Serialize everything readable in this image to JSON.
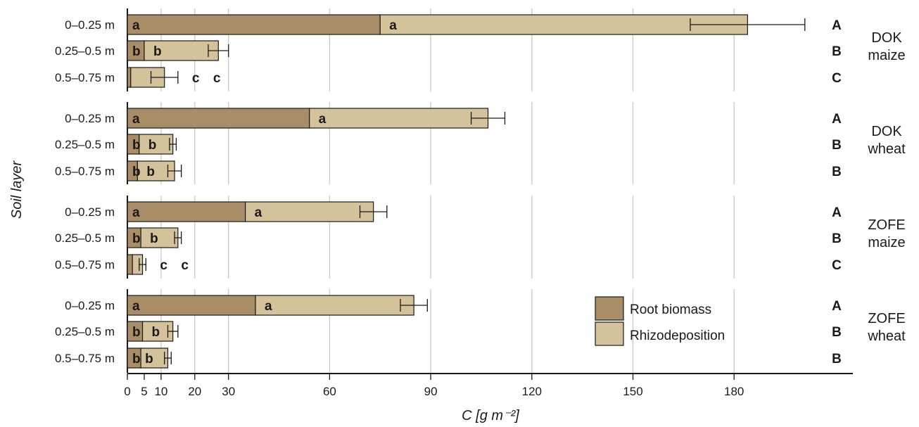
{
  "chart_data": {
    "type": "bar",
    "orientation": "horizontal",
    "stacked": true,
    "xlabel": "C [g m⁻²]",
    "ylabel": "Soil layer",
    "xticks": [
      0,
      5,
      10,
      20,
      30,
      60,
      90,
      120,
      150,
      180
    ],
    "xlim": [
      0,
      210
    ],
    "grid": "vertical",
    "legend_position": "bottom-right",
    "colors": {
      "root": "#a88d66",
      "rhizo": "#d4c39a"
    },
    "series": [
      {
        "name": "Root biomass"
      },
      {
        "name": "Rhizodeposition"
      }
    ],
    "panels": [
      {
        "label_lines": [
          "DOK",
          "maize"
        ],
        "rows": [
          {
            "layer": "0–0.25 m",
            "root": 75,
            "rhizo": 109,
            "err_low": 17,
            "err_high": 17,
            "root_letter": "a",
            "rhizo_letter": "a",
            "total_letter": "A"
          },
          {
            "layer": "0.25–0.5 m",
            "root": 5,
            "rhizo": 22,
            "err_low": 3,
            "err_high": 3,
            "root_letter": "b",
            "rhizo_letter": "b",
            "total_letter": "B"
          },
          {
            "layer": "0.5–0.75 m",
            "root": 1,
            "rhizo": 10,
            "err_low": 4,
            "err_high": 4,
            "root_letter": "c",
            "rhizo_letter": "c",
            "total_letter": "C"
          }
        ]
      },
      {
        "label_lines": [
          "DOK",
          "wheat"
        ],
        "rows": [
          {
            "layer": "0–0.25 m",
            "root": 54,
            "rhizo": 53,
            "err_low": 5,
            "err_high": 5,
            "root_letter": "a",
            "rhizo_letter": "a",
            "total_letter": "A"
          },
          {
            "layer": "0.25–0.5 m",
            "root": 3.5,
            "rhizo": 10,
            "err_low": 1,
            "err_high": 1,
            "root_letter": "b",
            "rhizo_letter": "b",
            "total_letter": "B"
          },
          {
            "layer": "0.5–0.75 m",
            "root": 3,
            "rhizo": 11,
            "err_low": 2,
            "err_high": 2,
            "root_letter": "b",
            "rhizo_letter": "b",
            "total_letter": "B"
          }
        ]
      },
      {
        "label_lines": [
          "ZOFE",
          "maize"
        ],
        "rows": [
          {
            "layer": "0–0.25 m",
            "root": 35,
            "rhizo": 38,
            "err_low": 4,
            "err_high": 4,
            "root_letter": "a",
            "rhizo_letter": "a",
            "total_letter": "A"
          },
          {
            "layer": "0.25–0.5 m",
            "root": 4,
            "rhizo": 11,
            "err_low": 1,
            "err_high": 1,
            "root_letter": "b",
            "rhizo_letter": "b",
            "total_letter": "B"
          },
          {
            "layer": "0.5–0.75 m",
            "root": 1.5,
            "rhizo": 3,
            "err_low": 1,
            "err_high": 1,
            "root_letter": "c",
            "rhizo_letter": "c",
            "total_letter": "C"
          }
        ]
      },
      {
        "label_lines": [
          "ZOFE",
          "wheat"
        ],
        "rows": [
          {
            "layer": "0–0.25 m",
            "root": 38,
            "rhizo": 47,
            "err_low": 4,
            "err_high": 4,
            "root_letter": "a",
            "rhizo_letter": "a",
            "total_letter": "A"
          },
          {
            "layer": "0.25–0.5 m",
            "root": 4.5,
            "rhizo": 9,
            "err_low": 1.5,
            "err_high": 1.5,
            "root_letter": "b",
            "rhizo_letter": "b",
            "total_letter": "B"
          },
          {
            "layer": "0.5–0.75 m",
            "root": 4,
            "rhizo": 8,
            "err_low": 1,
            "err_high": 1,
            "root_letter": "b",
            "rhizo_letter": "b",
            "total_letter": "B"
          }
        ]
      }
    ]
  }
}
